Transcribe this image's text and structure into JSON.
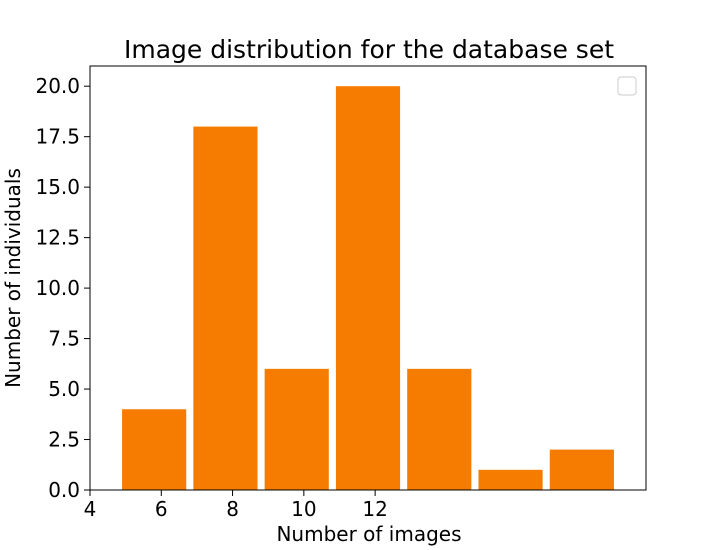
{
  "chart_data": {
    "type": "bar",
    "title": "Image distribution for the database set",
    "xlabel": "Number of images",
    "ylabel": "Number of individuals",
    "bars": [
      {
        "x_start": 4.2,
        "x_end": 5.1,
        "value": 4
      },
      {
        "x_start": 5.2,
        "x_end": 6.1,
        "value": 18
      },
      {
        "x_start": 6.2,
        "x_end": 7.1,
        "value": 6
      },
      {
        "x_start": 7.2,
        "x_end": 8.1,
        "value": 20
      },
      {
        "x_start": 8.2,
        "x_end": 9.1,
        "value": 6
      },
      {
        "x_start": 9.2,
        "x_end": 10.1,
        "value": 1
      },
      {
        "x_start": 10.2,
        "x_end": 11.1,
        "value": 2
      }
    ],
    "xlim": [
      3.75,
      11.55
    ],
    "ylim": [
      0,
      21
    ],
    "xticks": [
      "4",
      "6",
      "8",
      "10",
      "12"
    ],
    "yticks": [
      "0.0",
      "2.5",
      "5.0",
      "7.5",
      "10.0",
      "12.5",
      "15.0",
      "17.5",
      "20.0"
    ],
    "bar_color": "#f57c00",
    "legend": "top-right",
    "grid": false
  }
}
